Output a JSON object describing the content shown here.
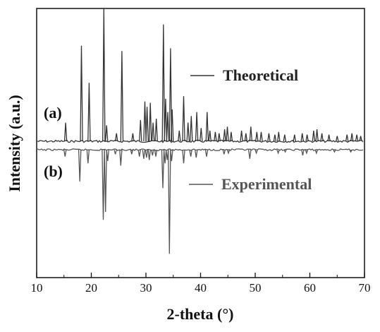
{
  "chart_data": {
    "type": "line",
    "xlabel": "2-theta (°)",
    "ylabel": "Intensity (a.u.)",
    "xlim": [
      10,
      70
    ],
    "xticks": [
      "10",
      "20",
      "30",
      "40",
      "50",
      "60",
      "70"
    ],
    "yticks_shown": false,
    "grid": false,
    "legend_placement": "inline-right",
    "series": [
      {
        "name": "Theoretical",
        "panel_label": "(a)",
        "direction": "up",
        "color": "#333333",
        "peaks": [
          [
            15.3,
            0.14
          ],
          [
            18.2,
            0.72
          ],
          [
            19.6,
            0.44
          ],
          [
            22.3,
            1.0
          ],
          [
            22.8,
            0.12
          ],
          [
            24.6,
            0.06
          ],
          [
            25.6,
            0.68
          ],
          [
            27.6,
            0.06
          ],
          [
            29.0,
            0.16
          ],
          [
            29.8,
            0.3
          ],
          [
            30.2,
            0.26
          ],
          [
            30.8,
            0.29
          ],
          [
            31.3,
            0.14
          ],
          [
            31.9,
            0.17
          ],
          [
            33.2,
            0.88
          ],
          [
            33.6,
            0.32
          ],
          [
            34.0,
            0.22
          ],
          [
            34.5,
            0.7
          ],
          [
            34.8,
            0.24
          ],
          [
            36.1,
            0.08
          ],
          [
            36.9,
            0.34
          ],
          [
            37.7,
            0.14
          ],
          [
            38.3,
            0.19
          ],
          [
            39.3,
            0.22
          ],
          [
            40.1,
            0.1
          ],
          [
            41.2,
            0.22
          ],
          [
            41.7,
            0.08
          ],
          [
            42.7,
            0.07
          ],
          [
            43.4,
            0.06
          ],
          [
            44.4,
            0.09
          ],
          [
            44.9,
            0.11
          ],
          [
            45.6,
            0.07
          ],
          [
            47.5,
            0.08
          ],
          [
            48.3,
            0.06
          ],
          [
            49.2,
            0.11
          ],
          [
            50.3,
            0.07
          ],
          [
            51.1,
            0.07
          ],
          [
            52.5,
            0.06
          ],
          [
            53.6,
            0.05
          ],
          [
            54.3,
            0.07
          ],
          [
            55.4,
            0.05
          ],
          [
            57.2,
            0.05
          ],
          [
            58.6,
            0.06
          ],
          [
            59.5,
            0.05
          ],
          [
            60.7,
            0.08
          ],
          [
            61.3,
            0.09
          ],
          [
            62.2,
            0.06
          ],
          [
            63.5,
            0.05
          ],
          [
            65.0,
            0.04
          ],
          [
            66.8,
            0.05
          ],
          [
            67.7,
            0.06
          ],
          [
            68.6,
            0.05
          ],
          [
            69.3,
            0.04
          ]
        ]
      },
      {
        "name": "Experimental",
        "panel_label": "(b)",
        "direction": "down",
        "color": "#555555",
        "peaks": [
          [
            15.2,
            0.06
          ],
          [
            17.9,
            0.28
          ],
          [
            19.4,
            0.12
          ],
          [
            22.2,
            0.62
          ],
          [
            22.6,
            0.55
          ],
          [
            23.0,
            0.1
          ],
          [
            24.4,
            0.04
          ],
          [
            25.4,
            0.14
          ],
          [
            27.4,
            0.04
          ],
          [
            28.8,
            0.06
          ],
          [
            29.6,
            0.08
          ],
          [
            30.1,
            0.07
          ],
          [
            30.6,
            0.09
          ],
          [
            31.2,
            0.05
          ],
          [
            31.8,
            0.06
          ],
          [
            33.1,
            0.34
          ],
          [
            33.5,
            0.12
          ],
          [
            33.9,
            0.09
          ],
          [
            34.3,
            0.92
          ],
          [
            34.7,
            0.1
          ],
          [
            36.9,
            0.12
          ],
          [
            38.2,
            0.06
          ],
          [
            39.2,
            0.07
          ],
          [
            41.1,
            0.06
          ],
          [
            44.3,
            0.04
          ],
          [
            45.1,
            0.03
          ],
          [
            49.0,
            0.08
          ],
          [
            50.2,
            0.03
          ],
          [
            54.2,
            0.03
          ],
          [
            55.5,
            0.02
          ],
          [
            58.7,
            0.05
          ],
          [
            59.4,
            0.03
          ],
          [
            61.2,
            0.03
          ],
          [
            64.5,
            0.02
          ],
          [
            67.5,
            0.02
          ]
        ]
      }
    ]
  }
}
